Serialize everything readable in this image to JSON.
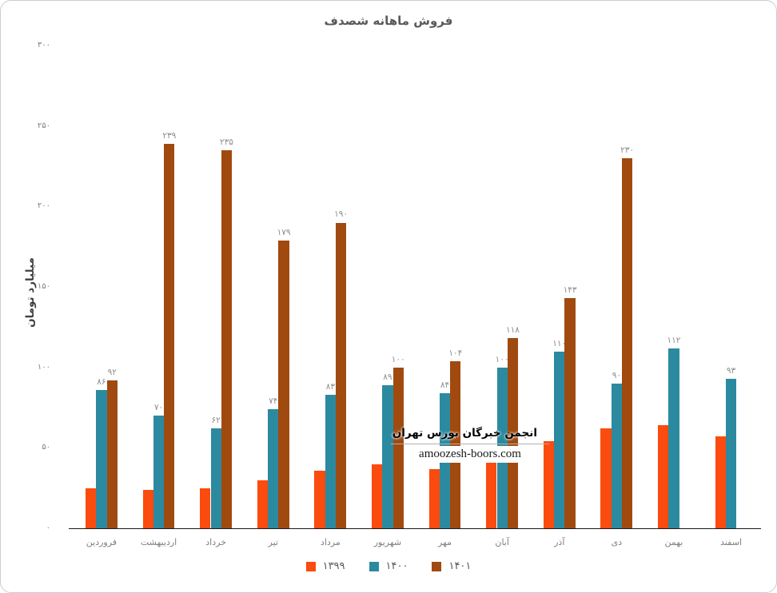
{
  "chart_data": {
    "type": "bar",
    "title": "فروش ماهانه شصدف",
    "xlabel": "",
    "ylabel": "میلیارد تومان",
    "ylim": [
      0,
      300
    ],
    "grid": false,
    "legend_position": "bottom",
    "yticks": [
      {
        "value": 0,
        "label": "۰"
      },
      {
        "value": 50,
        "label": "۵۰"
      },
      {
        "value": 100,
        "label": "۱۰۰"
      },
      {
        "value": 150,
        "label": "۱۵۰"
      },
      {
        "value": 200,
        "label": "۲۰۰"
      },
      {
        "value": 250,
        "label": "۲۵۰"
      },
      {
        "value": 300,
        "label": "۳۰۰"
      }
    ],
    "categories": [
      "فروردین",
      "اردیبهشت",
      "خرداد",
      "تیر",
      "مرداد",
      "شهریور",
      "مهر",
      "آبان",
      "آذر",
      "دی",
      "بهمن",
      "اسفند"
    ],
    "series": [
      {
        "name": "۱۳۹۹",
        "color": "#fb4b0e",
        "values": [
          25,
          24,
          25,
          30,
          36,
          40,
          37,
          48,
          54,
          62,
          64,
          57
        ],
        "value_labels": [
          null,
          null,
          null,
          null,
          null,
          null,
          null,
          null,
          null,
          null,
          null,
          null
        ]
      },
      {
        "name": "۱۴۰۰",
        "color": "#2c8aa0",
        "values": [
          86,
          70,
          62,
          74,
          83,
          89,
          84,
          100,
          110,
          90,
          112,
          93
        ],
        "value_labels": [
          "۸۶",
          "۷۰",
          "۶۲",
          "۷۴",
          "۸۳",
          "۸۹",
          "۸۴",
          "۱۰۰",
          "۱۱۰",
          "۹۰",
          "۱۱۲",
          "۹۳"
        ]
      },
      {
        "name": "۱۴۰۱",
        "color": "#a04a10",
        "values": [
          92,
          239,
          235,
          179,
          190,
          100,
          104,
          118,
          143,
          230,
          null,
          null
        ],
        "value_labels": [
          "۹۲",
          "۲۳۹",
          "۲۳۵",
          "۱۷۹",
          "۱۹۰",
          "۱۰۰",
          "۱۰۴",
          "۱۱۸",
          "۱۴۳",
          "۲۳۰",
          null,
          null
        ]
      }
    ]
  },
  "watermark": {
    "line1": "انجمن خبرگان بورس تهران",
    "line2": "amoozesh-boors.com"
  }
}
